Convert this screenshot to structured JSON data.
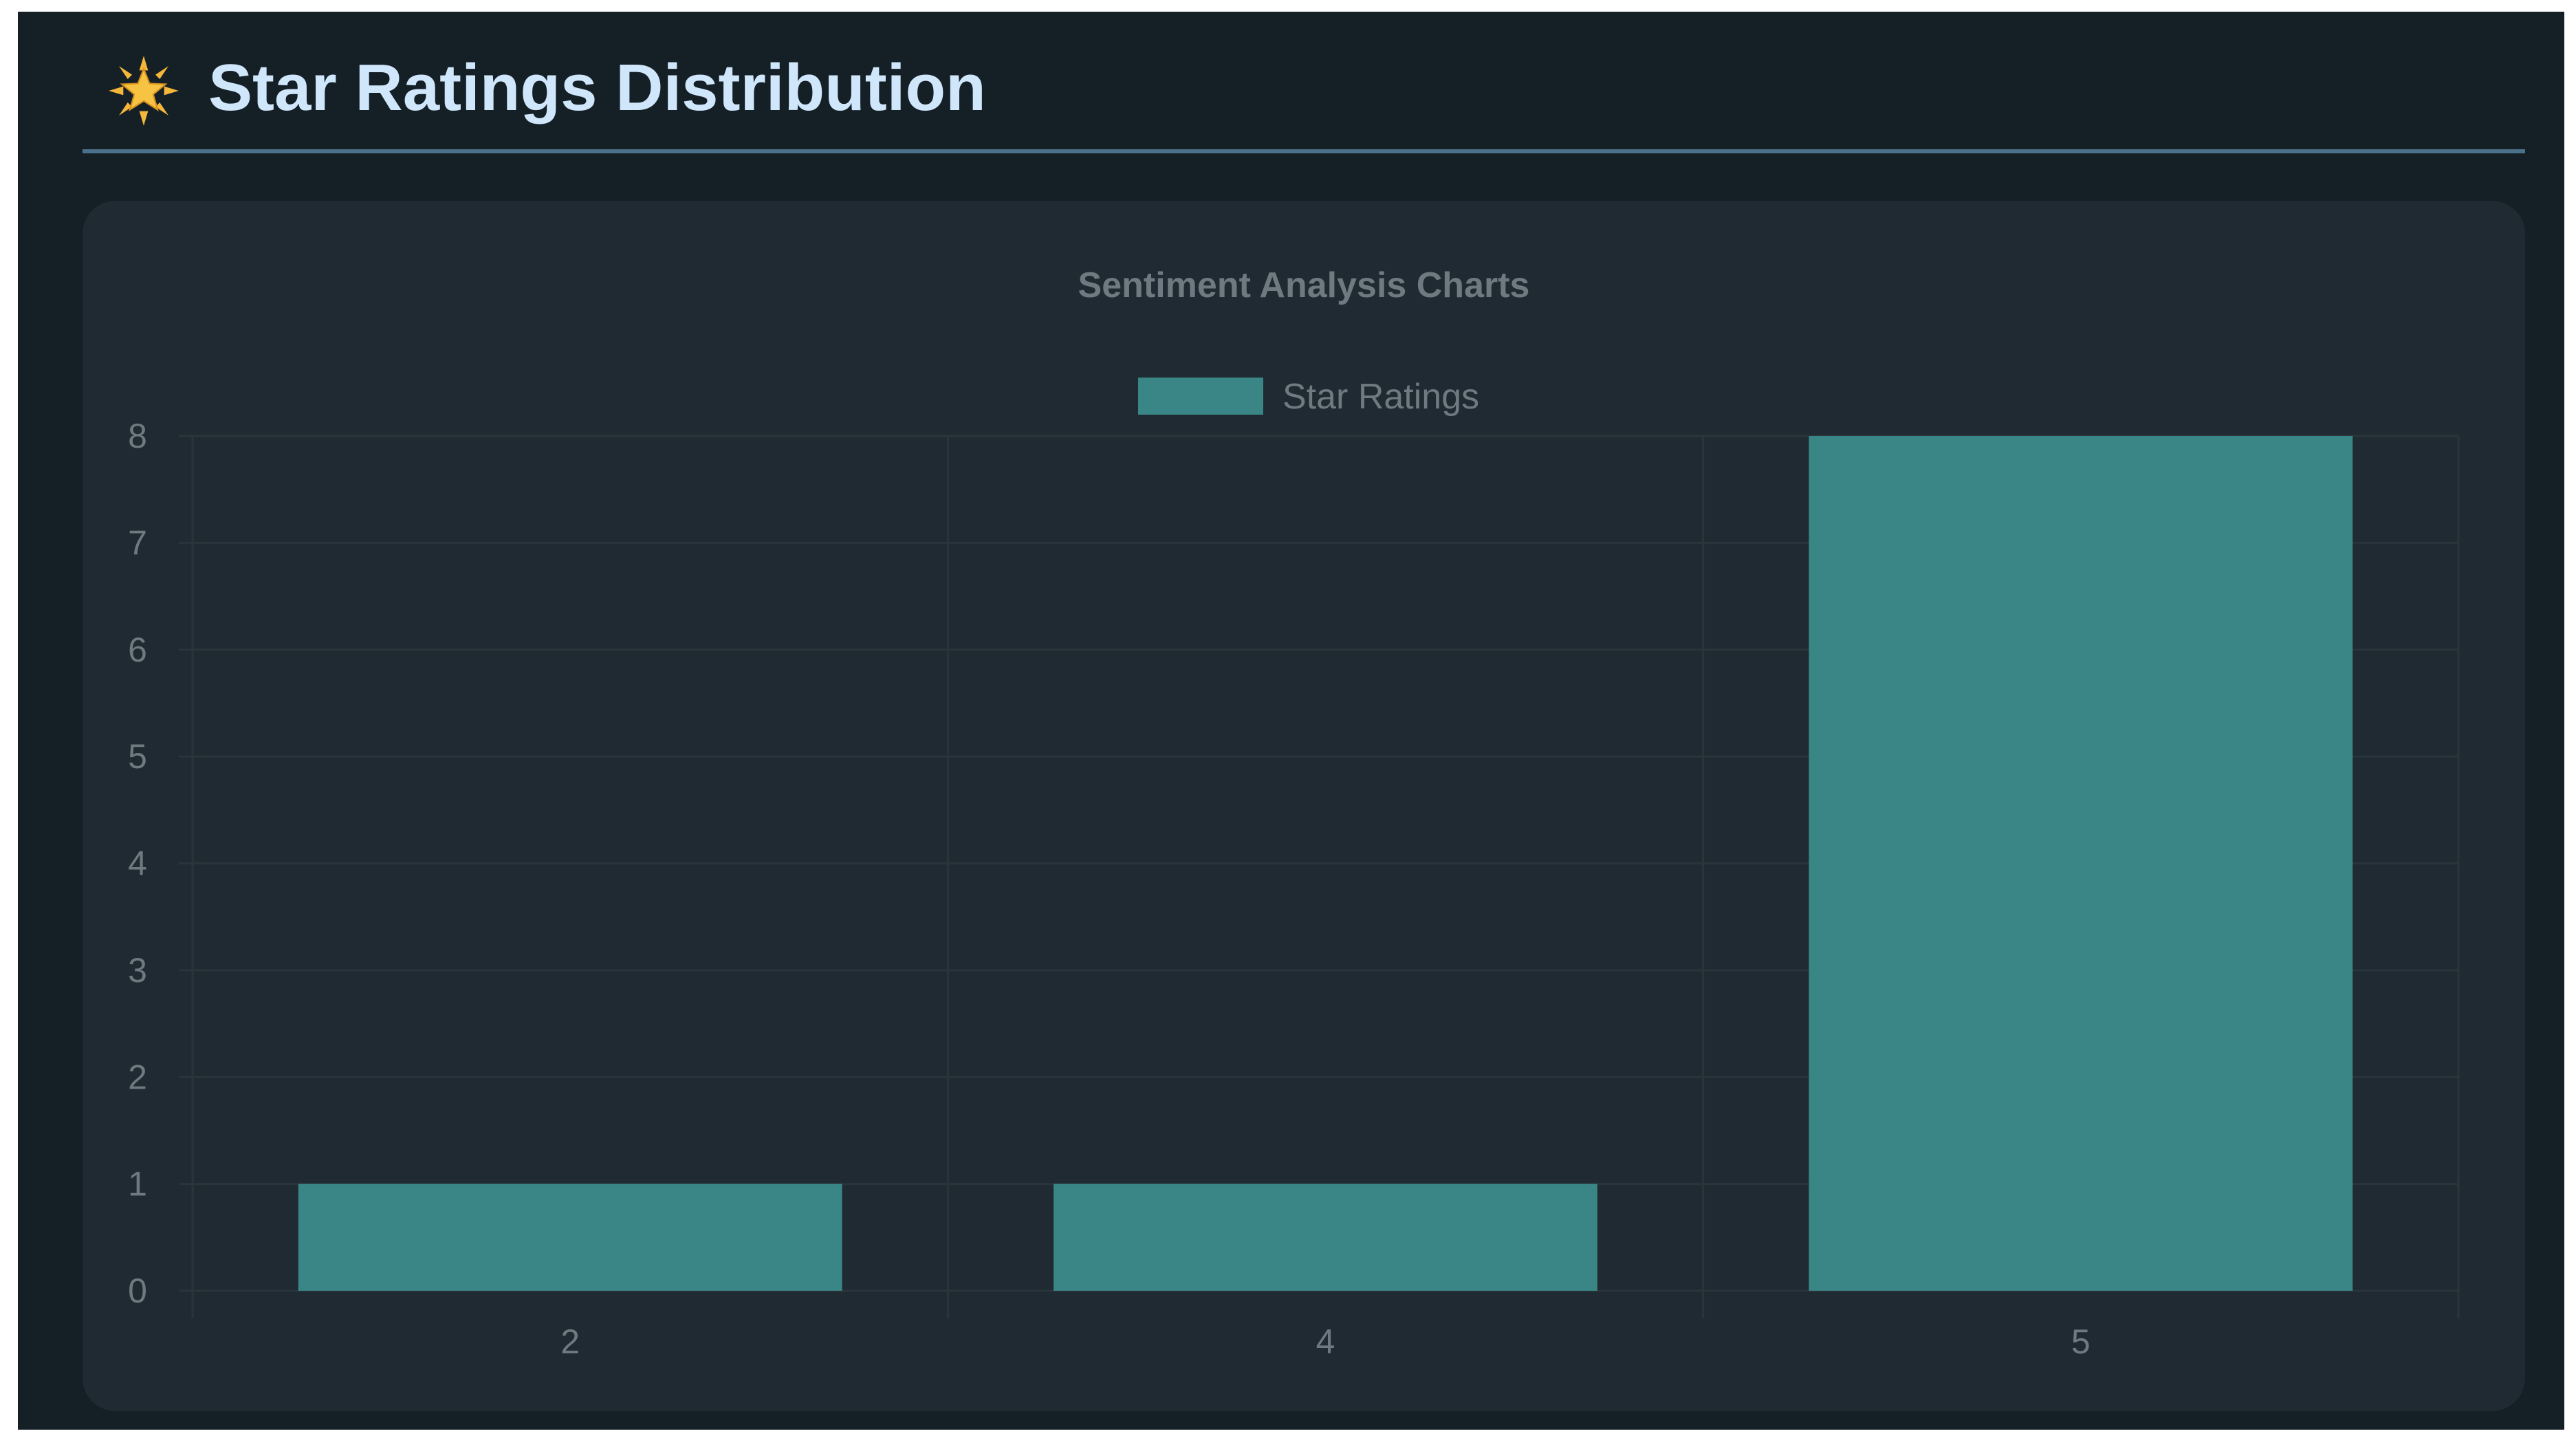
{
  "header": {
    "title": "Star Ratings Distribution",
    "icon": "glowing-star-icon",
    "icon_color": "#f4b73b"
  },
  "chart_data": {
    "type": "bar",
    "title": "Sentiment Analysis Charts",
    "categories": [
      "2",
      "4",
      "5"
    ],
    "series": [
      {
        "name": "Star Ratings",
        "values": [
          1,
          1,
          8
        ],
        "color": "#3a8585"
      }
    ],
    "yticks": [
      "0",
      "1",
      "2",
      "3",
      "4",
      "5",
      "6",
      "7",
      "8"
    ],
    "ylim": [
      0,
      8
    ],
    "grid": true,
    "legend": "top-center"
  },
  "colors": {
    "background": "#141f26",
    "card": "#1f2a32",
    "grid": "#2a343b",
    "divider": "#4b7089"
  }
}
